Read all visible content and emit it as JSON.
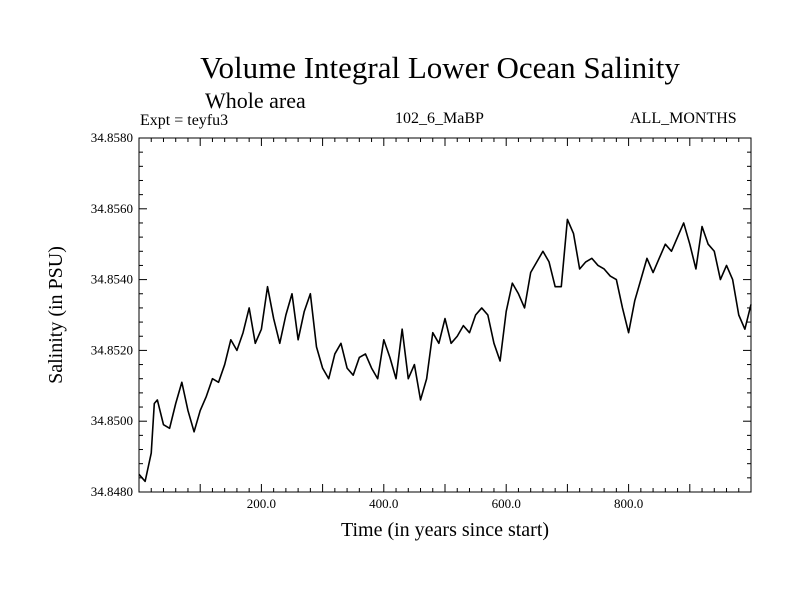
{
  "chart_data": {
    "type": "line",
    "title": "Volume Integral Lower Ocean Salinity",
    "subtitle": "Whole area",
    "experiment_label": "Expt = teyfu3",
    "center_label": "102_6_MaBP",
    "right_label": "ALL_MONTHS",
    "xlabel": "Time (in years since start)",
    "ylabel": "Salinity (in PSU)",
    "xlim": [
      0,
      1000
    ],
    "ylim": [
      34.848,
      34.858
    ],
    "x_ticks": [
      200,
      400,
      600,
      800
    ],
    "x_tick_labels": [
      "200.0",
      "400.0",
      "600.0",
      "800.0"
    ],
    "y_ticks": [
      34.848,
      34.85,
      34.852,
      34.854,
      34.856,
      34.858
    ],
    "y_tick_labels": [
      "34.8480",
      "34.8500",
      "34.8520",
      "34.8540",
      "34.8560",
      "34.8580"
    ],
    "grid": false,
    "series": [
      {
        "name": "Lower ocean salinity",
        "x": [
          0,
          10,
          20,
          25,
          30,
          40,
          50,
          60,
          70,
          80,
          90,
          100,
          110,
          120,
          130,
          140,
          150,
          160,
          170,
          180,
          190,
          200,
          210,
          220,
          230,
          240,
          250,
          260,
          270,
          280,
          290,
          300,
          310,
          320,
          330,
          340,
          350,
          360,
          370,
          380,
          390,
          400,
          410,
          420,
          430,
          440,
          450,
          460,
          470,
          480,
          490,
          500,
          510,
          520,
          530,
          540,
          550,
          560,
          570,
          580,
          590,
          600,
          610,
          620,
          630,
          640,
          650,
          660,
          670,
          680,
          690,
          700,
          710,
          720,
          730,
          740,
          750,
          760,
          770,
          780,
          790,
          800,
          810,
          820,
          830,
          840,
          850,
          860,
          870,
          880,
          890,
          900,
          910,
          920,
          930,
          940,
          950,
          960,
          970,
          980,
          990,
          1000
        ],
        "values": [
          34.8485,
          34.8483,
          34.8491,
          34.8505,
          34.8506,
          34.8499,
          34.8498,
          34.8505,
          34.8511,
          34.8503,
          34.8497,
          34.8503,
          34.8507,
          34.8512,
          34.8511,
          34.8516,
          34.8523,
          34.852,
          34.8525,
          34.8532,
          34.8522,
          34.8526,
          34.8538,
          34.8529,
          34.8522,
          34.853,
          34.8536,
          34.8523,
          34.8531,
          34.8536,
          34.8521,
          34.8515,
          34.8512,
          34.8519,
          34.8522,
          34.8515,
          34.8513,
          34.8518,
          34.8519,
          34.8515,
          34.8512,
          34.8523,
          34.8518,
          34.8512,
          34.8526,
          34.8512,
          34.8516,
          34.8506,
          34.8512,
          34.8525,
          34.8522,
          34.8529,
          34.8522,
          34.8524,
          34.8527,
          34.8525,
          34.853,
          34.8532,
          34.853,
          34.8522,
          34.8517,
          34.8531,
          34.8539,
          34.8536,
          34.8532,
          34.8542,
          34.8545,
          34.8548,
          34.8545,
          34.8538,
          34.8538,
          34.8557,
          34.8553,
          34.8543,
          34.8545,
          34.8546,
          34.8544,
          34.8543,
          34.8541,
          34.854,
          34.8532,
          34.8525,
          34.8534,
          34.854,
          34.8546,
          34.8542,
          34.8546,
          34.855,
          34.8548,
          34.8552,
          34.8556,
          34.855,
          34.8543,
          34.8555,
          34.855,
          34.8548,
          34.854,
          34.8544,
          34.854,
          34.853,
          34.8526,
          34.8533
        ]
      }
    ]
  }
}
